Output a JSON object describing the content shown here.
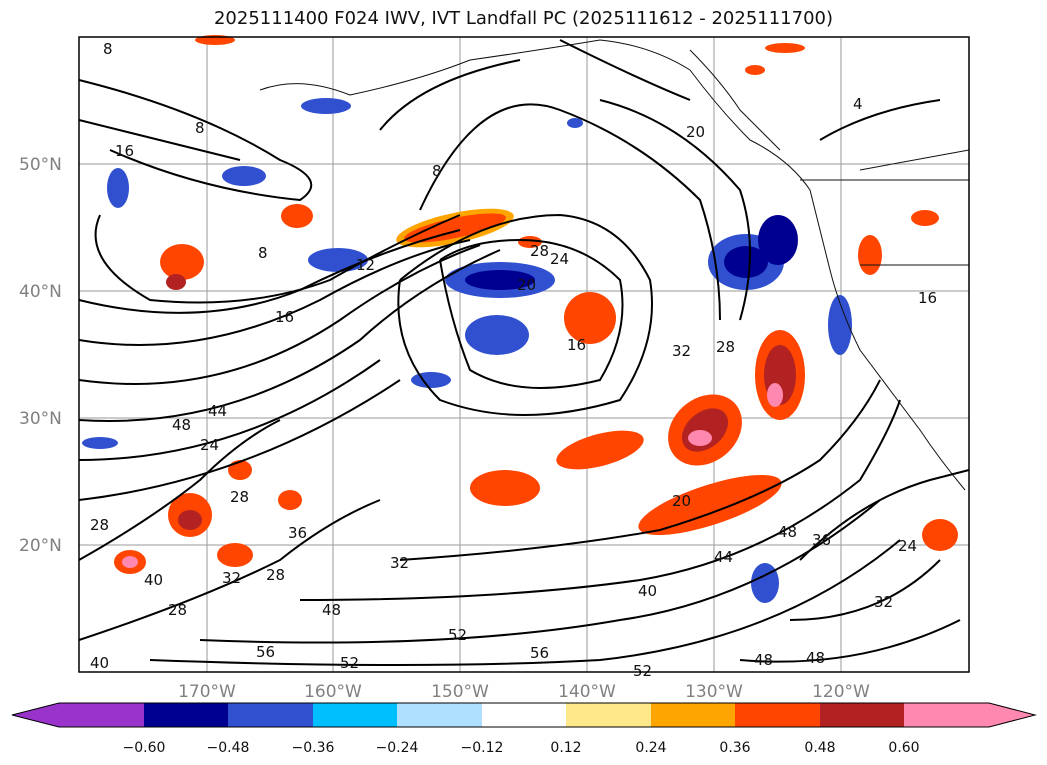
{
  "title": "2025111400 F024 IWV, IVT Landfall PC (2025111612 - 2025111700)",
  "map": {
    "lat_labels": [
      "50°N",
      "40°N",
      "30°N",
      "20°N"
    ],
    "lon_labels": [
      "170°W",
      "160°W",
      "150°W",
      "140°W",
      "130°W",
      "120°W"
    ],
    "contour_labels": [
      "8",
      "16",
      "8",
      "8",
      "8",
      "12",
      "16",
      "20",
      "24",
      "28",
      "16",
      "28",
      "32",
      "4",
      "20",
      "16",
      "44",
      "48",
      "24",
      "28",
      "28",
      "36",
      "32",
      "28",
      "40",
      "28",
      "52",
      "56",
      "52",
      "40",
      "44",
      "48",
      "36",
      "32",
      "24",
      "48",
      "48",
      "52",
      "56",
      "20",
      "32",
      "48",
      "40"
    ]
  },
  "colorbar": {
    "ticks": [
      "−0.60",
      "−0.48",
      "−0.36",
      "−0.24",
      "−0.12",
      "0.12",
      "0.24",
      "0.36",
      "0.48",
      "0.60"
    ],
    "colors": [
      "#9933cc",
      "#000090",
      "#3050d0",
      "#00bfff",
      "#b0e0ff",
      "#ffffff",
      "#ffe88a",
      "#ffa500",
      "#ff4500",
      "#b22222",
      "#ff88b0"
    ]
  }
}
